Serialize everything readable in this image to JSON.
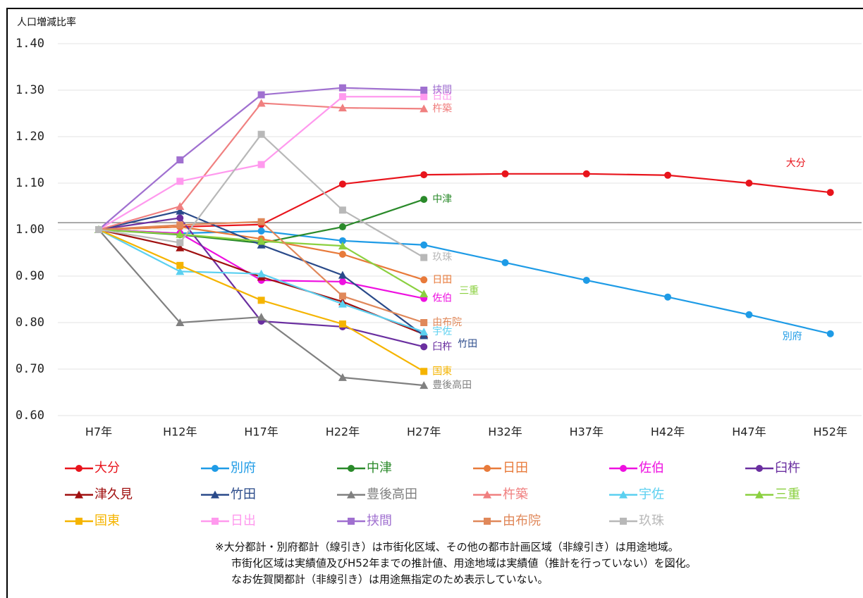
{
  "chart_data": {
    "type": "line",
    "y_axis_label": "人口増減比率",
    "categories": [
      "H7年",
      "H12年",
      "H17年",
      "H22年",
      "H27年",
      "H32年",
      "H37年",
      "H42年",
      "H47年",
      "H52年"
    ],
    "ylim": [
      0.6,
      1.4
    ],
    "yticks": [
      {
        "value": 1.4,
        "label": "1.40"
      },
      {
        "value": 1.3,
        "label": "1.30"
      },
      {
        "value": 1.2,
        "label": "1.20"
      },
      {
        "value": 1.1,
        "label": "1.10"
      },
      {
        "value": 1.0,
        "label": "1.00"
      },
      {
        "value": 0.9,
        "label": "0.90"
      },
      {
        "value": 0.8,
        "label": "0.80"
      },
      {
        "value": 0.7,
        "label": "0.70"
      },
      {
        "value": 0.6,
        "label": "0.60"
      }
    ],
    "grid": true,
    "reference_line": 1.015,
    "series": [
      {
        "name": "大分",
        "color": "#e8141c",
        "marker": "circle",
        "values": [
          1.0,
          1.006,
          1.011,
          1.098,
          1.118,
          1.12,
          1.12,
          1.117,
          1.1,
          1.08
        ]
      },
      {
        "name": "別府",
        "color": "#1e9be6",
        "marker": "circle",
        "values": [
          1.0,
          0.992,
          0.997,
          0.976,
          0.967,
          0.929,
          0.891,
          0.855,
          0.817,
          0.776
        ]
      },
      {
        "name": "中津",
        "color": "#2a8a2a",
        "marker": "circle",
        "values": [
          1.0,
          0.989,
          0.971,
          1.006,
          1.065,
          null,
          null,
          null,
          null,
          null
        ]
      },
      {
        "name": "日田",
        "color": "#e87a3a",
        "marker": "circle",
        "values": [
          1.0,
          1.006,
          0.98,
          0.947,
          0.892,
          null,
          null,
          null,
          null,
          null
        ]
      },
      {
        "name": "佐伯",
        "color": "#ee10e0",
        "marker": "circle",
        "values": [
          1.0,
          0.992,
          0.891,
          0.888,
          0.852,
          null,
          null,
          null,
          null,
          null
        ]
      },
      {
        "name": "臼杵",
        "color": "#6a2fa0",
        "marker": "circle",
        "values": [
          1.0,
          1.025,
          0.803,
          0.791,
          0.748,
          null,
          null,
          null,
          null,
          null
        ]
      },
      {
        "name": "津久見",
        "color": "#a01010",
        "marker": "triangle",
        "values": [
          1.0,
          0.961,
          0.898,
          0.845,
          0.775,
          null,
          null,
          null,
          null,
          null
        ]
      },
      {
        "name": "竹田",
        "color": "#2a4a8a",
        "marker": "triangle",
        "values": [
          1.0,
          1.04,
          0.967,
          0.902,
          0.772,
          null,
          null,
          null,
          null,
          null
        ]
      },
      {
        "name": "豊後高田",
        "color": "#808080",
        "marker": "triangle",
        "values": [
          1.0,
          0.8,
          0.812,
          0.682,
          0.665,
          null,
          null,
          null,
          null,
          null
        ]
      },
      {
        "name": "杵築",
        "color": "#f08080",
        "marker": "triangle",
        "values": [
          1.0,
          1.05,
          1.272,
          1.262,
          1.26,
          null,
          null,
          null,
          null,
          null
        ]
      },
      {
        "name": "宇佐",
        "color": "#5bd0f0",
        "marker": "triangle",
        "values": [
          1.0,
          0.91,
          0.905,
          0.84,
          0.78,
          null,
          null,
          null,
          null,
          null
        ]
      },
      {
        "name": "三重",
        "color": "#8bd040",
        "marker": "triangle",
        "values": [
          1.0,
          0.99,
          0.975,
          0.965,
          0.862,
          null,
          null,
          null,
          null,
          null
        ]
      },
      {
        "name": "国東",
        "color": "#f5b400",
        "marker": "square",
        "values": [
          1.0,
          0.923,
          0.848,
          0.797,
          0.695,
          null,
          null,
          null,
          null,
          null
        ]
      },
      {
        "name": "日出",
        "color": "#ff99ee",
        "marker": "square",
        "values": [
          1.0,
          1.104,
          1.14,
          1.286,
          1.286,
          null,
          null,
          null,
          null,
          null
        ]
      },
      {
        "name": "挟間",
        "color": "#a070d0",
        "marker": "square",
        "values": [
          1.0,
          1.15,
          1.29,
          1.305,
          1.3,
          null,
          null,
          null,
          null,
          null
        ]
      },
      {
        "name": "由布院",
        "color": "#e0885a",
        "marker": "square",
        "values": [
          1.0,
          1.01,
          1.017,
          0.857,
          0.8,
          null,
          null,
          null,
          null,
          null
        ]
      },
      {
        "name": "玖珠",
        "color": "#b8b8b8",
        "marker": "square",
        "values": [
          1.0,
          0.972,
          1.205,
          1.042,
          0.94,
          null,
          null,
          null,
          null,
          null
        ]
      }
    ],
    "notes": [
      "※大分都計・別府都計（線引き）は市街化区域、その他の都市計画区域（非線引き）は用途地域。",
      "市街化区域は実績値及びH52年までの推計値、用途地域は実績値（推計を行っていない）を図化。",
      "なお佐賀関都計（非線引き）は用途無指定のため表示していない。"
    ]
  }
}
